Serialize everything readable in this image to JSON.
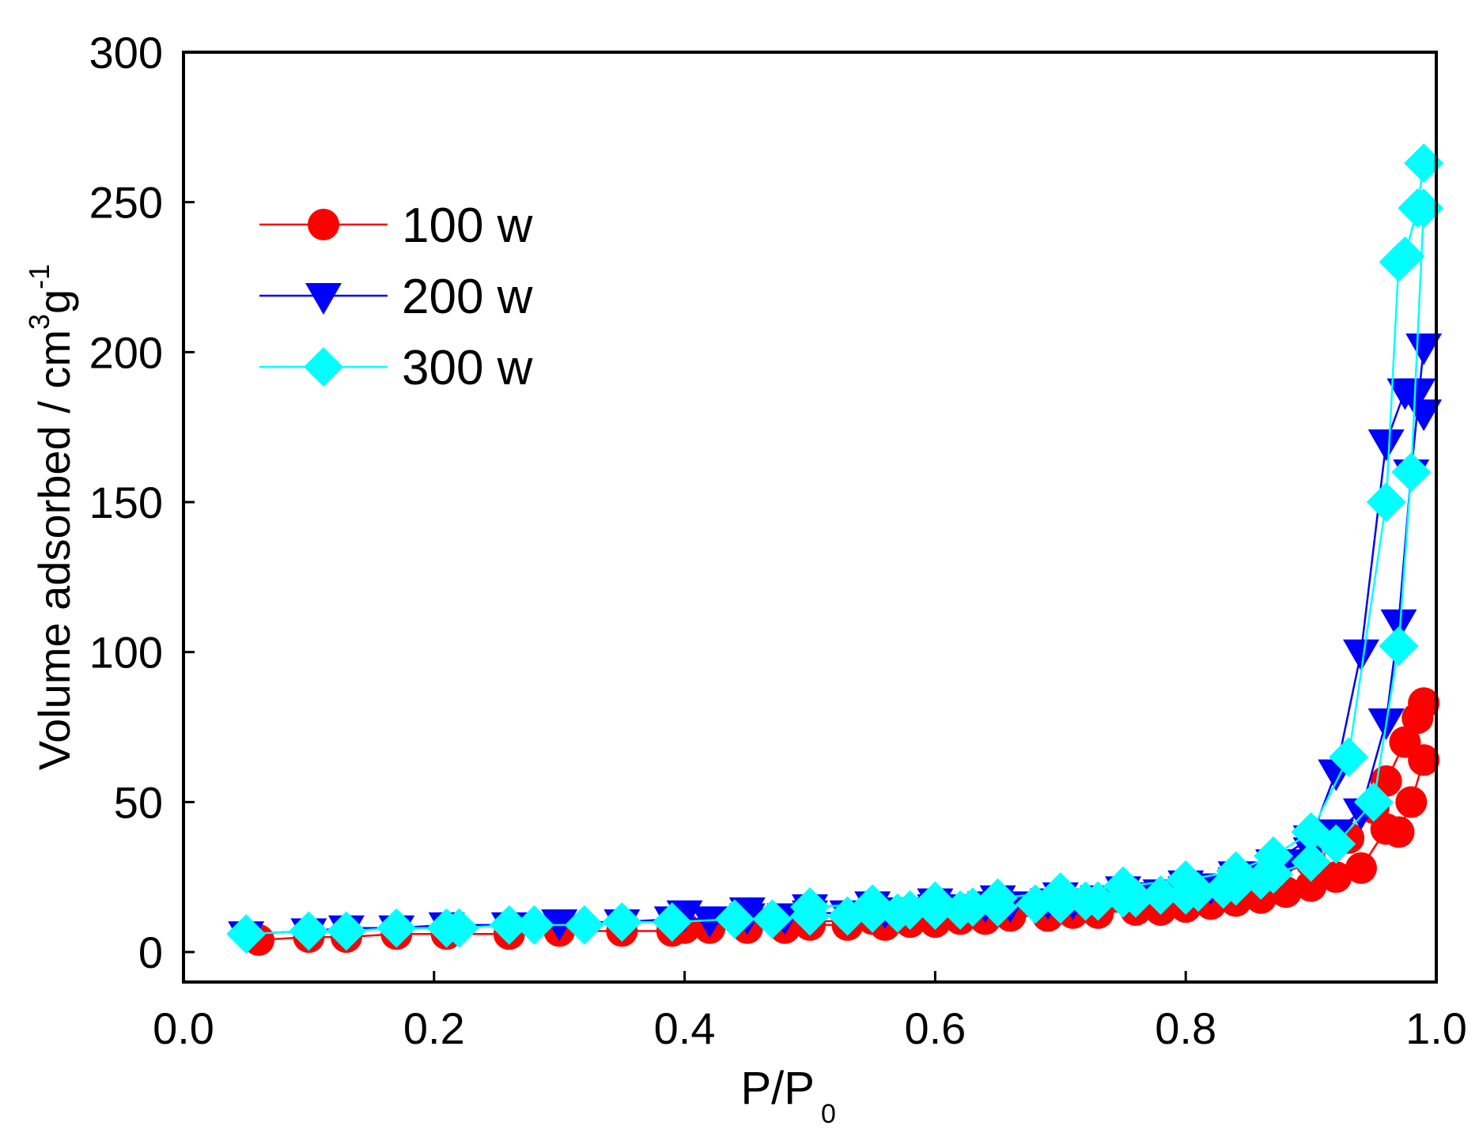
{
  "chart_data": {
    "type": "scatter",
    "title": "",
    "xlabel": "P/P",
    "xlabel_subscript": "0",
    "ylabel_main": "Volume adsorbed / cm",
    "ylabel_sup1": "3",
    "ylabel_g": "g",
    "ylabel_sup2": "-1",
    "xlim": [
      0.0,
      1.0
    ],
    "ylim": [
      -10,
      300
    ],
    "xticks": [
      "0.0",
      "0.2",
      "0.4",
      "0.6",
      "0.8",
      "1.0"
    ],
    "yticks": [
      "0",
      "50",
      "100",
      "150",
      "200",
      "250",
      "300"
    ],
    "grid": false,
    "legend_position": "top-left",
    "series": [
      {
        "name": "100 w",
        "color": "#ff0000",
        "marker": "circle",
        "adsorption": {
          "x": [
            0.06,
            0.1,
            0.13,
            0.17,
            0.21,
            0.26,
            0.3,
            0.35,
            0.39,
            0.42,
            0.45,
            0.48,
            0.5,
            0.53,
            0.56,
            0.58,
            0.6,
            0.62,
            0.64,
            0.66,
            0.69,
            0.71,
            0.73,
            0.76,
            0.78,
            0.8,
            0.82,
            0.84,
            0.86,
            0.88,
            0.9,
            0.92,
            0.94,
            0.96,
            0.97,
            0.98,
            0.99
          ],
          "y": [
            4,
            5,
            5,
            6,
            6,
            6,
            7,
            7,
            7,
            8,
            8,
            8,
            9,
            9,
            9,
            10,
            10,
            11,
            11,
            12,
            12,
            13,
            13,
            14,
            14,
            15,
            16,
            17,
            18,
            20,
            22,
            25,
            28,
            41,
            40,
            50,
            64
          ]
        },
        "desorption": {
          "x": [
            0.99,
            0.985,
            0.975,
            0.96,
            0.95,
            0.93,
            0.9,
            0.87,
            0.84,
            0.8,
            0.75,
            0.7,
            0.65,
            0.6,
            0.55,
            0.5,
            0.45,
            0.4
          ],
          "y": [
            83,
            78,
            70,
            57,
            48,
            38,
            30,
            25,
            22,
            20,
            18,
            16,
            14,
            12,
            11,
            10,
            9,
            8
          ]
        }
      },
      {
        "name": "200 w",
        "color": "#0000ff",
        "marker": "triangle-down",
        "adsorption": {
          "x": [
            0.05,
            0.1,
            0.13,
            0.17,
            0.21,
            0.26,
            0.3,
            0.35,
            0.39,
            0.42,
            0.45,
            0.48,
            0.5,
            0.53,
            0.56,
            0.58,
            0.6,
            0.62,
            0.64,
            0.66,
            0.69,
            0.71,
            0.73,
            0.76,
            0.78,
            0.8,
            0.82,
            0.84,
            0.86,
            0.88,
            0.9,
            0.92,
            0.94,
            0.96,
            0.97,
            0.98,
            0.99
          ],
          "y": [
            6,
            7,
            8,
            8,
            9,
            9,
            10,
            10,
            11,
            11,
            12,
            12,
            13,
            13,
            14,
            14,
            15,
            15,
            16,
            16,
            17,
            17,
            18,
            19,
            20,
            21,
            22,
            24,
            26,
            30,
            34,
            40,
            47,
            77,
            110,
            160,
            202
          ]
        },
        "desorption": {
          "x": [
            0.99,
            0.985,
            0.975,
            0.96,
            0.94,
            0.92,
            0.9,
            0.87,
            0.84,
            0.8,
            0.75,
            0.7,
            0.65,
            0.6,
            0.55,
            0.5,
            0.45,
            0.4
          ],
          "y": [
            180,
            187,
            187,
            170,
            100,
            60,
            38,
            30,
            26,
            23,
            21,
            19,
            18,
            17,
            16,
            15,
            14,
            13
          ]
        }
      },
      {
        "name": "300 w",
        "color": "#00ffff",
        "marker": "diamond",
        "adsorption": {
          "x": [
            0.05,
            0.1,
            0.13,
            0.17,
            0.21,
            0.22,
            0.26,
            0.28,
            0.32,
            0.35,
            0.39,
            0.44,
            0.47,
            0.5,
            0.53,
            0.55,
            0.57,
            0.58,
            0.6,
            0.62,
            0.63,
            0.65,
            0.68,
            0.7,
            0.72,
            0.73,
            0.75,
            0.76,
            0.78,
            0.8,
            0.81,
            0.83,
            0.84,
            0.86,
            0.87,
            0.9,
            0.92,
            0.95,
            0.97,
            0.98,
            0.99
          ],
          "y": [
            6,
            7,
            7,
            8,
            8,
            8,
            9,
            9,
            9,
            10,
            10,
            11,
            11,
            12,
            12,
            13,
            13,
            14,
            14,
            14,
            15,
            15,
            16,
            16,
            17,
            17,
            18,
            18,
            19,
            19,
            20,
            21,
            22,
            24,
            26,
            30,
            36,
            50,
            102,
            160,
            248
          ]
        },
        "desorption": {
          "x": [
            0.99,
            0.985,
            0.975,
            0.97,
            0.96,
            0.93,
            0.9,
            0.87,
            0.84,
            0.8,
            0.75,
            0.7,
            0.65,
            0.6,
            0.55,
            0.5
          ],
          "y": [
            263,
            248,
            232,
            230,
            150,
            65,
            40,
            32,
            27,
            24,
            22,
            20,
            18,
            17,
            16,
            15
          ]
        }
      }
    ]
  }
}
